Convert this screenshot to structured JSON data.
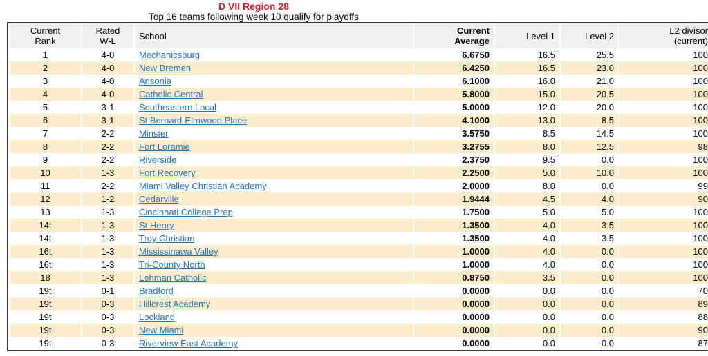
{
  "page": {
    "title": "D VII Region 28",
    "subtitle": "Top 16 teams following week 10 qualify for playoffs"
  },
  "colors": {
    "title_red": "#cc2229",
    "row_highlight": "#fbeccb",
    "header_bg": "#f0f0f0",
    "link_blue": "#2373b9",
    "table_border": "#3a3a3a"
  },
  "table": {
    "headers": {
      "current_rank": [
        "Current",
        "Rank"
      ],
      "rated_wl": [
        "Rated",
        "W-L"
      ],
      "school": "School",
      "current_average": [
        "Current",
        "Average"
      ],
      "level1": "Level 1",
      "level2": "Level 2",
      "l2_divisor": [
        "L2 divisor",
        "(current)"
      ]
    },
    "rows": [
      {
        "rank": "1",
        "wl": "4-0",
        "school": "Mechanicsburg",
        "avg": "6.6750",
        "level1": "16.5",
        "level2": "25.5",
        "divisor": "100"
      },
      {
        "rank": "2",
        "wl": "4-0",
        "school": "New Bremen",
        "avg": "6.4250",
        "level1": "16.5",
        "level2": "23.0",
        "divisor": "100"
      },
      {
        "rank": "3",
        "wl": "4-0",
        "school": "Ansonia",
        "avg": "6.1000",
        "level1": "16.0",
        "level2": "21.0",
        "divisor": "100"
      },
      {
        "rank": "4",
        "wl": "4-0",
        "school": "Catholic Central",
        "avg": "5.8000",
        "level1": "15.0",
        "level2": "20.5",
        "divisor": "100"
      },
      {
        "rank": "5",
        "wl": "3-1",
        "school": "Southeastern Local",
        "avg": "5.0000",
        "level1": "12.0",
        "level2": "20.0",
        "divisor": "100"
      },
      {
        "rank": "6",
        "wl": "3-1",
        "school": "St Bernard-Elmwood Place",
        "avg": "4.1000",
        "level1": "13.0",
        "level2": "8.5",
        "divisor": "100"
      },
      {
        "rank": "7",
        "wl": "2-2",
        "school": "Minster",
        "avg": "3.5750",
        "level1": "8.5",
        "level2": "14.5",
        "divisor": "100"
      },
      {
        "rank": "8",
        "wl": "2-2",
        "school": "Fort Loramie",
        "avg": "3.2755",
        "level1": "8.0",
        "level2": "12.5",
        "divisor": "98"
      },
      {
        "rank": "9",
        "wl": "2-2",
        "school": "Riverside",
        "avg": "2.3750",
        "level1": "9.5",
        "level2": "0.0",
        "divisor": "100"
      },
      {
        "rank": "10",
        "wl": "1-3",
        "school": "Fort Recovery",
        "avg": "2.2500",
        "level1": "5.0",
        "level2": "10.0",
        "divisor": "100"
      },
      {
        "rank": "11",
        "wl": "2-2",
        "school": "Miami Valley Christian Academy",
        "avg": "2.0000",
        "level1": "8.0",
        "level2": "0.0",
        "divisor": "99"
      },
      {
        "rank": "12",
        "wl": "1-2",
        "school": "Cedarville",
        "avg": "1.9444",
        "level1": "4.5",
        "level2": "4.0",
        "divisor": "90"
      },
      {
        "rank": "13",
        "wl": "1-3",
        "school": "Cincinnati College Prep",
        "avg": "1.7500",
        "level1": "5.0",
        "level2": "5.0",
        "divisor": "100"
      },
      {
        "rank": "14t",
        "wl": "1-3",
        "school": "St Henry",
        "avg": "1.3500",
        "level1": "4.0",
        "level2": "3.5",
        "divisor": "100"
      },
      {
        "rank": "14t",
        "wl": "1-3",
        "school": "Troy Christian",
        "avg": "1.3500",
        "level1": "4.0",
        "level2": "3.5",
        "divisor": "100"
      },
      {
        "rank": "16t",
        "wl": "1-3",
        "school": "Mississinawa Valley",
        "avg": "1.0000",
        "level1": "4.0",
        "level2": "0.0",
        "divisor": "100"
      },
      {
        "rank": "16t",
        "wl": "1-3",
        "school": "Tri-County North",
        "avg": "1.0000",
        "level1": "4.0",
        "level2": "0.0",
        "divisor": "100"
      },
      {
        "rank": "18",
        "wl": "1-3",
        "school": "Lehman Catholic",
        "avg": "0.8750",
        "level1": "3.5",
        "level2": "0.0",
        "divisor": "100"
      },
      {
        "rank": "19t",
        "wl": "0-1",
        "school": "Bradford",
        "avg": "0.0000",
        "level1": "0.0",
        "level2": "0.0",
        "divisor": "70"
      },
      {
        "rank": "19t",
        "wl": "0-3",
        "school": "Hillcrest Academy",
        "avg": "0.0000",
        "level1": "0.0",
        "level2": "0.0",
        "divisor": "89"
      },
      {
        "rank": "19t",
        "wl": "0-3",
        "school": "Lockland",
        "avg": "0.0000",
        "level1": "0.0",
        "level2": "0.0",
        "divisor": "88"
      },
      {
        "rank": "19t",
        "wl": "0-3",
        "school": "New Miami",
        "avg": "0.0000",
        "level1": "0.0",
        "level2": "0.0",
        "divisor": "90"
      },
      {
        "rank": "19t",
        "wl": "0-3",
        "school": "Riverview East Academy",
        "avg": "0.0000",
        "level1": "0.0",
        "level2": "0.0",
        "divisor": "87"
      }
    ]
  }
}
